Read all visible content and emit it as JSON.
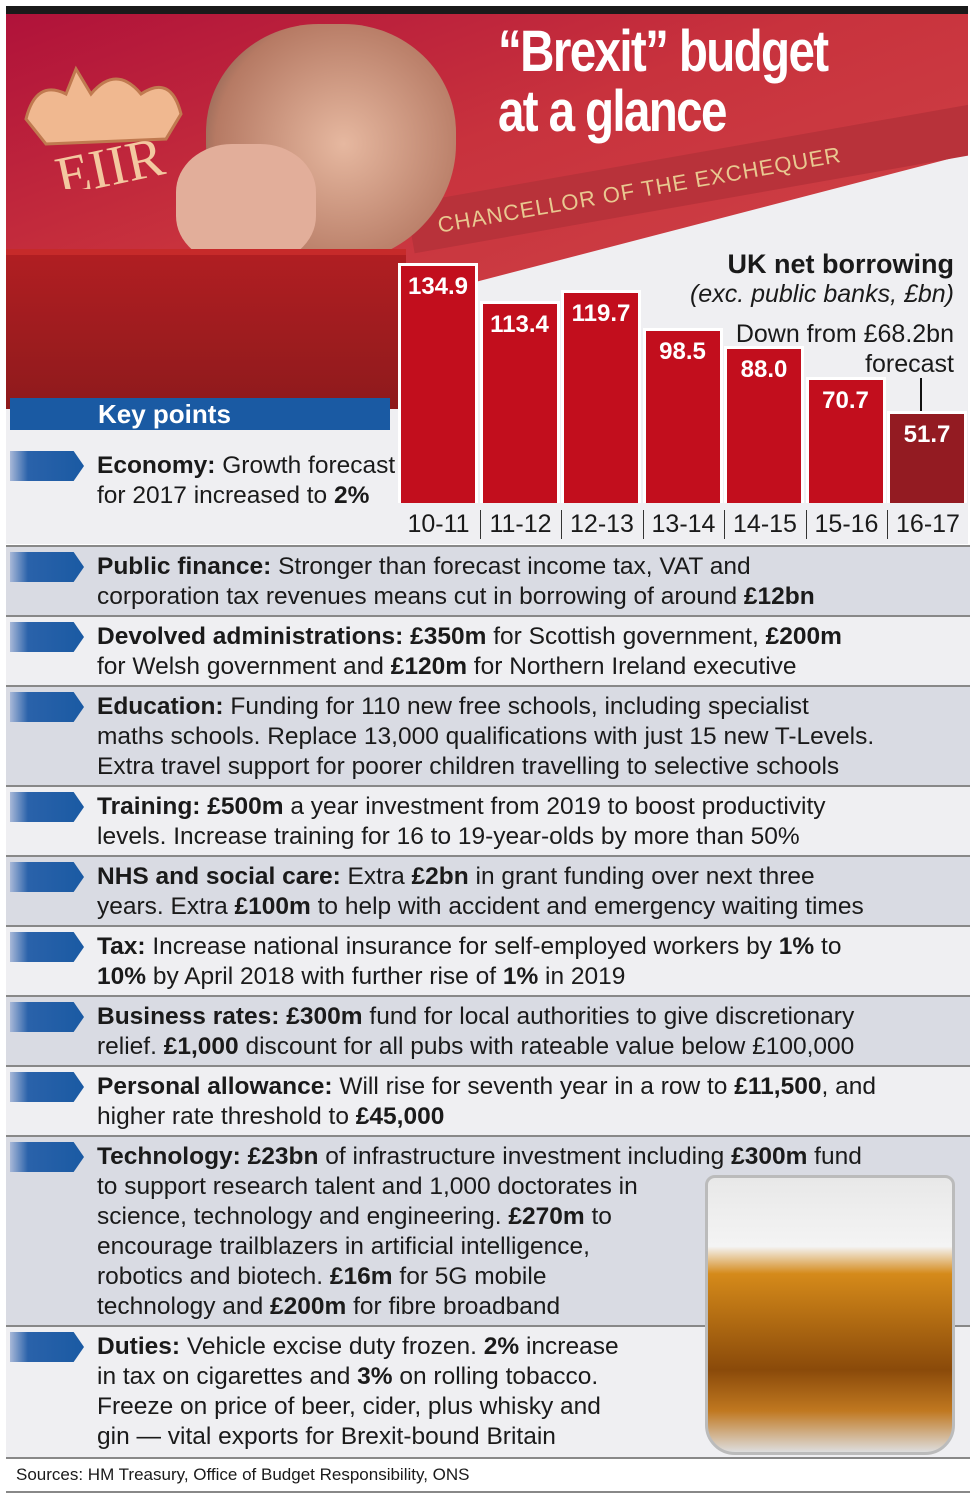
{
  "header": {
    "title_line1": "“Brexit” budget",
    "title_line2": "at a glance",
    "banner": "CHANCELLOR OF THE EXCHEQUER",
    "logo_text": "EIIR"
  },
  "chart_data": {
    "type": "bar",
    "title": "UK net borrowing",
    "subtitle": "(exc. public banks, £bn)",
    "categories": [
      "10-11",
      "11-12",
      "12-13",
      "13-14",
      "14-15",
      "15-16",
      "16-17"
    ],
    "values": [
      134.9,
      113.4,
      119.7,
      98.5,
      88.0,
      70.7,
      51.7
    ],
    "value_labels": [
      "134.9",
      "113.4",
      "119.7",
      "98.5",
      "88.0",
      "70.7",
      "51.7"
    ],
    "forecast_index": 6,
    "annotation": "Down from £68.2bn forecast",
    "colors": {
      "bar": "#c20e1d",
      "forecast": "#931b22"
    },
    "ylim": [
      0,
      140
    ],
    "grid": false
  },
  "key_points": {
    "heading": "Key points",
    "economy": [
      {
        "t": "Economy:",
        "b": true
      },
      {
        "t": " Growth forecast for 2017 increased to "
      },
      {
        "t": "2%",
        "b": true
      }
    ],
    "items": [
      [
        [
          {
            "t": "Public finance:",
            "b": true
          },
          {
            "t": " Stronger than forecast income tax, VAT and"
          }
        ],
        [
          {
            "t": "corporation tax revenues means cut in borrowing of around "
          },
          {
            "t": "£12bn",
            "b": true
          }
        ]
      ],
      [
        [
          {
            "t": "Devolved administrations:",
            "b": true
          },
          {
            "t": " £350m",
            "b": true
          },
          {
            "t": " for Scottish government, "
          },
          {
            "t": "£200m",
            "b": true
          }
        ],
        [
          {
            "t": "for Welsh government and "
          },
          {
            "t": "£120m",
            "b": true
          },
          {
            "t": " for Northern Ireland executive"
          }
        ]
      ],
      [
        [
          {
            "t": "Education:",
            "b": true
          },
          {
            "t": " Funding for 110 new free schools, including specialist"
          }
        ],
        [
          {
            "t": "maths schools. Replace 13,000 qualifications with just 15 new T-Levels."
          }
        ],
        [
          {
            "t": "Extra travel support for poorer children travelling to selective schools"
          }
        ]
      ],
      [
        [
          {
            "t": "Training:",
            "b": true
          },
          {
            "t": " £500m",
            "b": true
          },
          {
            "t": " a year investment from 2019 to boost productivity"
          }
        ],
        [
          {
            "t": "levels. Increase training for 16 to 19-year-olds by more than 50%"
          }
        ]
      ],
      [
        [
          {
            "t": "NHS and social care:",
            "b": true
          },
          {
            "t": " Extra "
          },
          {
            "t": "£2bn",
            "b": true
          },
          {
            "t": " in grant funding over next three"
          }
        ],
        [
          {
            "t": "years. Extra "
          },
          {
            "t": "£100m",
            "b": true
          },
          {
            "t": " to help with accident and emergency waiting times"
          }
        ]
      ],
      [
        [
          {
            "t": "Tax:",
            "b": true
          },
          {
            "t": " Increase national insurance for self-employed workers by "
          },
          {
            "t": "1%",
            "b": true
          },
          {
            "t": " to"
          }
        ],
        [
          {
            "t": "10%",
            "b": true
          },
          {
            "t": " by April 2018 with further rise of "
          },
          {
            "t": "1%",
            "b": true
          },
          {
            "t": " in 2019"
          }
        ]
      ],
      [
        [
          {
            "t": "Business rates:",
            "b": true
          },
          {
            "t": " £300m",
            "b": true
          },
          {
            "t": " fund for local authorities to give discretionary"
          }
        ],
        [
          {
            "t": "relief. "
          },
          {
            "t": "£1,000",
            "b": true
          },
          {
            "t": " discount for all pubs with rateable value below £100,000"
          }
        ]
      ],
      [
        [
          {
            "t": "Personal allowance:",
            "b": true
          },
          {
            "t": " Will rise for seventh year in a row to "
          },
          {
            "t": "£11,500",
            "b": true
          },
          {
            "t": ", and"
          }
        ],
        [
          {
            "t": "higher rate threshold to "
          },
          {
            "t": "£45,000",
            "b": true
          }
        ]
      ],
      [
        [
          {
            "t": "Technology:",
            "b": true
          },
          {
            "t": " £23bn",
            "b": true
          },
          {
            "t": " of infrastructure investment including "
          },
          {
            "t": "£300m",
            "b": true
          },
          {
            "t": " fund"
          }
        ],
        [
          {
            "t": "to support research talent and 1,000 doctorates in"
          }
        ],
        [
          {
            "t": "science, technology and engineering. "
          },
          {
            "t": "£270m",
            "b": true
          },
          {
            "t": " to"
          }
        ],
        [
          {
            "t": "encourage trailblazers in artificial intelligence,"
          }
        ],
        [
          {
            "t": "robotics and biotech. "
          },
          {
            "t": "£16m",
            "b": true
          },
          {
            "t": " for 5G mobile"
          }
        ],
        [
          {
            "t": "technology and "
          },
          {
            "t": "£200m",
            "b": true
          },
          {
            "t": " for fibre broadband"
          }
        ]
      ],
      [
        [
          {
            "t": "Duties:",
            "b": true
          },
          {
            "t": " Vehicle excise duty frozen. "
          },
          {
            "t": "2%",
            "b": true
          },
          {
            "t": " increase"
          }
        ],
        [
          {
            "t": "in tax on cigarettes and "
          },
          {
            "t": "3%",
            "b": true
          },
          {
            "t": " on rolling tobacco."
          }
        ],
        [
          {
            "t": "Freeze on price of beer, cider, plus whisky and"
          }
        ],
        [
          {
            "t": "gin — vital exports for Brexit-bound Britain"
          }
        ]
      ]
    ]
  },
  "sources": "Sources: HM Treasury, Office of Budget Responsibility, ONS"
}
